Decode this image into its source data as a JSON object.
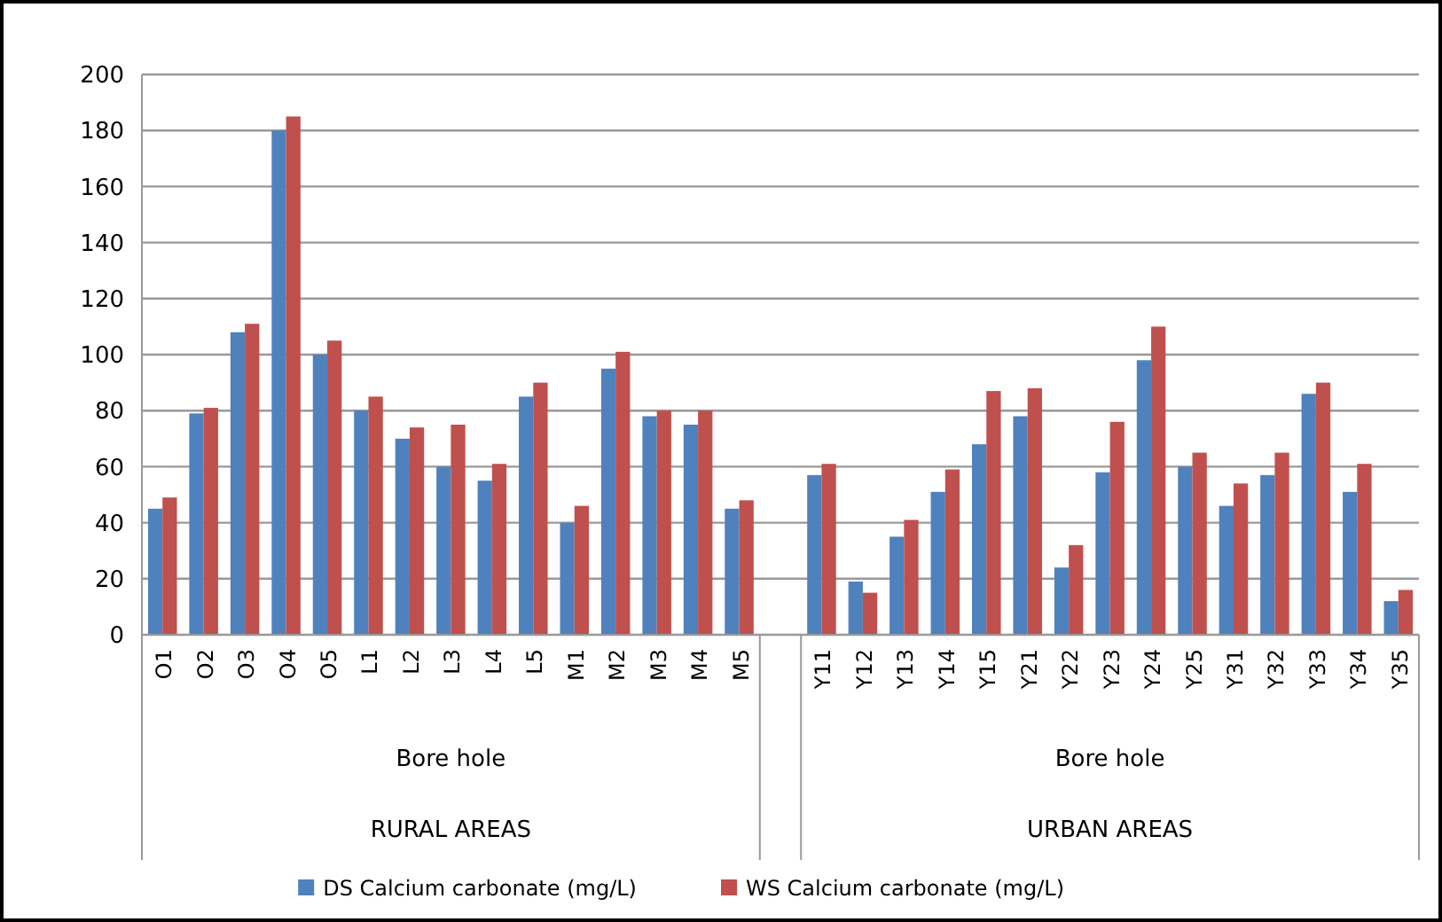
{
  "chart_data": {
    "type": "bar",
    "categories": [
      "O1",
      "O2",
      "O3",
      "O4",
      "O5",
      "L1",
      "L2",
      "L3",
      "L4",
      "L5",
      "M1",
      "M2",
      "M3",
      "M4",
      "M5",
      null,
      "Y11",
      "Y12",
      "Y13",
      "Y14",
      "Y15",
      "Y21",
      "Y22",
      "Y23",
      "Y24",
      "Y25",
      "Y31",
      "Y32",
      "Y33",
      "Y34",
      "Y35"
    ],
    "series": [
      {
        "name": "DS Calcium carbonate (mg/L)",
        "color": "#4f81bd",
        "values": [
          45,
          79,
          108,
          180,
          100,
          80,
          70,
          60,
          55,
          85,
          40,
          95,
          78,
          75,
          45,
          null,
          57,
          19,
          35,
          51,
          68,
          78,
          24,
          58,
          98,
          60,
          46,
          57,
          86,
          51,
          12
        ]
      },
      {
        "name": "WS Calcium carbonate (mg/L)",
        "color": "#c0504d",
        "values": [
          49,
          81,
          111,
          185,
          105,
          85,
          74,
          75,
          61,
          90,
          46,
          101,
          80,
          80,
          48,
          null,
          61,
          15,
          41,
          59,
          87,
          88,
          32,
          76,
          110,
          65,
          54,
          65,
          90,
          61,
          16
        ]
      }
    ],
    "annotations": [
      "Bore hole",
      "RURAL AREAS",
      "Bore hole",
      "URBAN AREAS"
    ],
    "ylim": [
      0,
      200
    ],
    "yticks": [
      0,
      20,
      40,
      60,
      80,
      100,
      120,
      140,
      160,
      180,
      200
    ],
    "grid": "y",
    "legend": "bottom"
  }
}
